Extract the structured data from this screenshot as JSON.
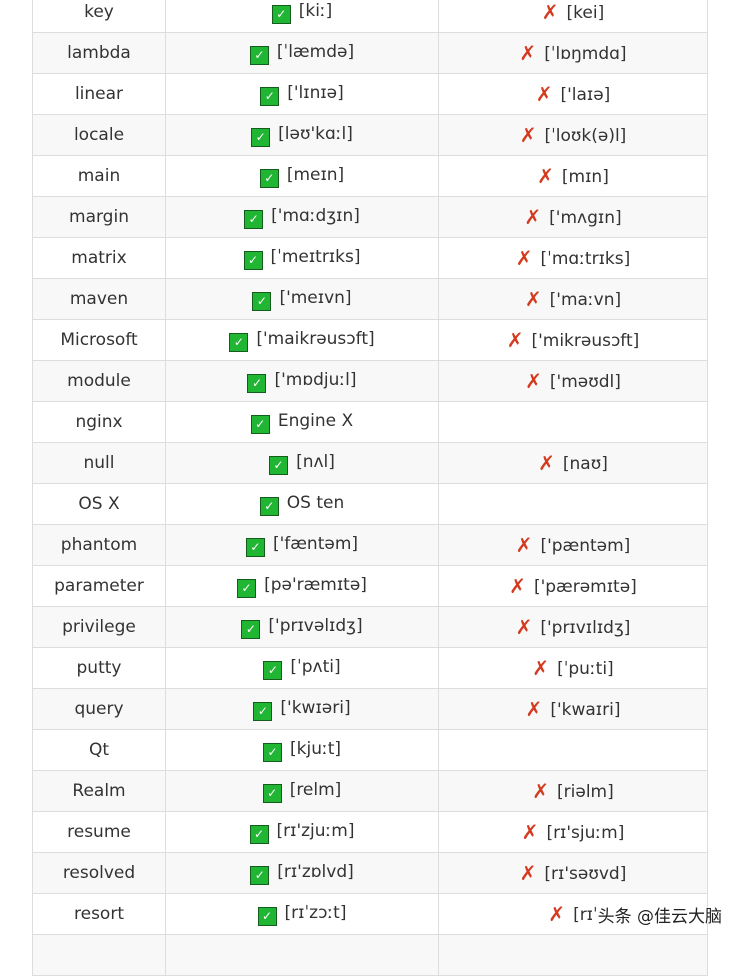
{
  "icons": {
    "correct": "check-box-icon",
    "wrong": "cross-icon",
    "correct_color": "#21b534",
    "wrong_color": "#d33a1f"
  },
  "rows": [
    {
      "word": "key",
      "correct": "[kiː]",
      "wrong": "[kei]"
    },
    {
      "word": "lambda",
      "correct": "[ˈlæmdə]",
      "wrong": "[ˈlɒŋmdɑ]"
    },
    {
      "word": "linear",
      "correct": "['lɪnɪə]",
      "wrong": "['laɪə]"
    },
    {
      "word": "locale",
      "correct": "[ləʊ'kɑːl]",
      "wrong": "[ˈloʊk(ə)l]"
    },
    {
      "word": "main",
      "correct": "[meɪn]",
      "wrong": "[mɪn]"
    },
    {
      "word": "margin",
      "correct": "['mɑːdʒɪn]",
      "wrong": "['mʌgɪn]"
    },
    {
      "word": "matrix",
      "correct": "[ˈmeɪtrɪks]",
      "wrong": "[ˈmɑːtrɪks]"
    },
    {
      "word": "maven",
      "correct": "['meɪvn]",
      "wrong": "['maːvn]"
    },
    {
      "word": "Microsoft",
      "correct": "['maikrəusɔft]",
      "wrong": "['mikrəusɔft]"
    },
    {
      "word": "module",
      "correct": "['mɒdjuːl]",
      "wrong": "['məʊdl]"
    },
    {
      "word": "nginx",
      "correct": "Engine X",
      "wrong": ""
    },
    {
      "word": "null",
      "correct": "[nʌl]",
      "wrong": "[naʊ]"
    },
    {
      "word": "OS X",
      "correct": "OS ten",
      "wrong": ""
    },
    {
      "word": "phantom",
      "correct": "['fæntəm]",
      "wrong": "['pæntəm]"
    },
    {
      "word": "parameter",
      "correct": "[pə'ræmɪtə]",
      "wrong": "['pærəmɪtə]"
    },
    {
      "word": "privilege",
      "correct": "['prɪvəlɪdʒ]",
      "wrong": "['prɪvɪlɪdʒ]"
    },
    {
      "word": "putty",
      "correct": "[ˈpʌti]",
      "wrong": "[ˈpuːti]"
    },
    {
      "word": "query",
      "correct": "['kwɪəri]",
      "wrong": "['kwaɪri]"
    },
    {
      "word": "Qt",
      "correct": "[kjuːt]",
      "wrong": ""
    },
    {
      "word": "Realm",
      "correct": "[relm]",
      "wrong": "[riəlm]"
    },
    {
      "word": "resume",
      "correct": "[rɪ'zjuːm]",
      "wrong": "[rɪ'sjuːm]"
    },
    {
      "word": "resolved",
      "correct": "[rɪ'zɒlvd]",
      "wrong": "[rɪ'səʊvd]"
    },
    {
      "word": "resort",
      "correct": "[rɪˈzɔːt]",
      "wrong": "[rɪˈ"
    },
    {
      "word": "",
      "correct": "",
      "wrong": ""
    }
  ],
  "watermark": "头条 @佳云大脑"
}
